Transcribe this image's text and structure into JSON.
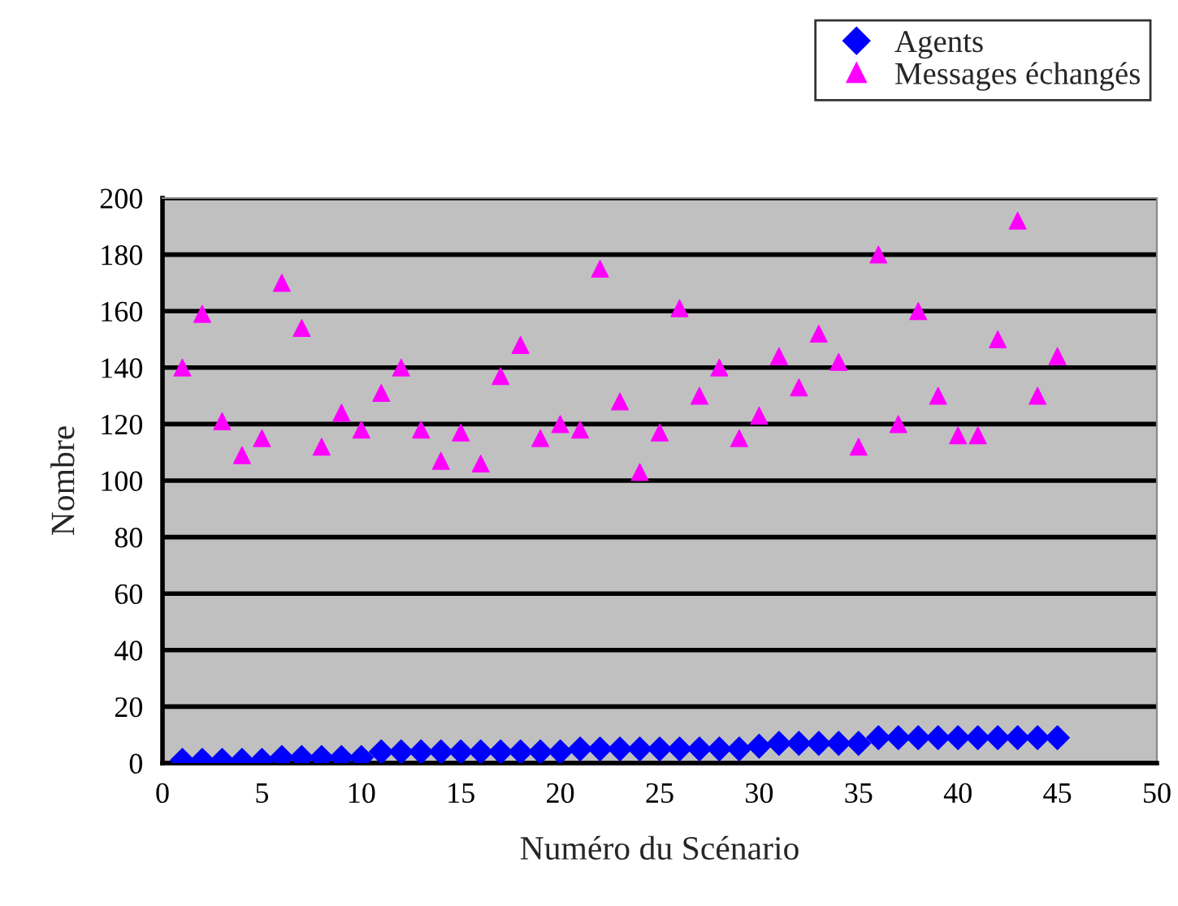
{
  "chart_data": {
    "type": "scatter",
    "xlabel": "Numéro du Scénario",
    "ylabel": "Nombre",
    "xlim": [
      0,
      50
    ],
    "xticks": [
      0,
      5,
      10,
      15,
      20,
      25,
      30,
      35,
      40,
      45,
      50
    ],
    "ylim": [
      0,
      200
    ],
    "yticks": [
      0,
      20,
      40,
      60,
      80,
      100,
      120,
      140,
      160,
      180,
      200
    ],
    "grid": "y",
    "legend": "top right",
    "series": [
      {
        "name": "Agents",
        "color": "#0000ff",
        "marker": "diamond",
        "x": [
          1,
          2,
          3,
          4,
          5,
          6,
          7,
          8,
          9,
          10,
          11,
          12,
          13,
          14,
          15,
          16,
          17,
          18,
          19,
          20,
          21,
          22,
          23,
          24,
          25,
          26,
          27,
          28,
          29,
          30,
          31,
          32,
          33,
          34,
          35,
          36,
          37,
          38,
          39,
          40,
          41,
          42,
          43,
          44,
          45
        ],
        "values": [
          1,
          1,
          1,
          1,
          1,
          2,
          2,
          2,
          2,
          2,
          4,
          4,
          4,
          4,
          4,
          4,
          4,
          4,
          4,
          4,
          5,
          5,
          5,
          5,
          5,
          5,
          5,
          5,
          5,
          6,
          7,
          7,
          7,
          7,
          7,
          9,
          9,
          9,
          9,
          9,
          9,
          9,
          9,
          9,
          9
        ]
      },
      {
        "name": "Messages échangés",
        "color": "#ff00ff",
        "marker": "triangle",
        "x": [
          1,
          2,
          3,
          4,
          5,
          6,
          7,
          8,
          9,
          10,
          11,
          12,
          13,
          14,
          15,
          16,
          17,
          18,
          19,
          20,
          21,
          22,
          23,
          24,
          25,
          26,
          27,
          28,
          29,
          30,
          31,
          32,
          33,
          34,
          35,
          36,
          37,
          38,
          39,
          40,
          41,
          42,
          43,
          44,
          45
        ],
        "values": [
          140,
          159,
          121,
          109,
          115,
          170,
          154,
          112,
          124,
          118,
          131,
          140,
          118,
          107,
          117,
          106,
          137,
          148,
          115,
          120,
          118,
          175,
          128,
          103,
          117,
          161,
          130,
          140,
          115,
          123,
          144,
          133,
          152,
          142,
          112,
          180,
          120,
          160,
          130,
          116,
          116,
          150,
          192,
          130,
          144
        ]
      }
    ]
  }
}
